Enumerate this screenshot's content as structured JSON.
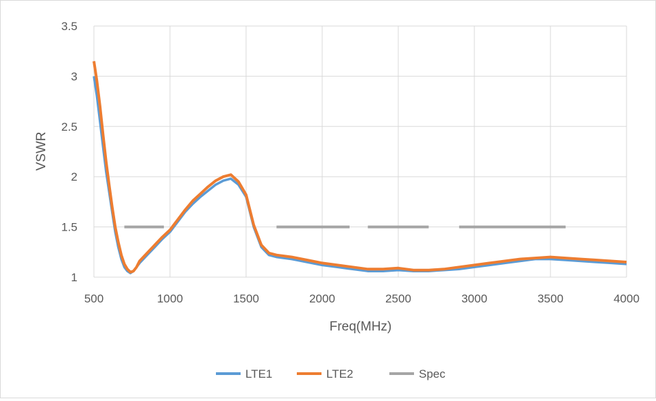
{
  "chart_data": {
    "type": "line",
    "title": "",
    "xlabel": "Freq(MHz)",
    "ylabel": "VSWR",
    "xlim": [
      500,
      4000
    ],
    "ylim": [
      1,
      3.5
    ],
    "x_ticks": [
      500,
      1000,
      1500,
      2000,
      2500,
      3000,
      3500,
      4000
    ],
    "y_ticks": [
      1,
      1.5,
      2,
      2.5,
      3,
      3.5
    ],
    "x_tick_labels": [
      "500",
      "1000",
      "1500",
      "2000",
      "2500",
      "3000",
      "3500",
      "4000"
    ],
    "y_tick_labels": [
      "1",
      "1.5",
      "2",
      "2.5",
      "3",
      "3.5"
    ],
    "grid": true,
    "legend_position": "bottom",
    "series": [
      {
        "name": "LTE1",
        "color": "#5b9bd5",
        "x": [
          500,
          520,
          540,
          560,
          580,
          600,
          620,
          640,
          660,
          680,
          700,
          720,
          740,
          760,
          780,
          800,
          850,
          900,
          950,
          1000,
          1050,
          1100,
          1150,
          1200,
          1250,
          1300,
          1350,
          1400,
          1450,
          1500,
          1550,
          1600,
          1650,
          1700,
          1800,
          1900,
          2000,
          2100,
          2200,
          2300,
          2400,
          2500,
          2600,
          2700,
          2800,
          2900,
          3000,
          3100,
          3200,
          3300,
          3400,
          3500,
          3600,
          3700,
          3800,
          3900,
          4000
        ],
        "y": [
          3.0,
          2.8,
          2.55,
          2.3,
          2.05,
          1.85,
          1.65,
          1.45,
          1.3,
          1.18,
          1.1,
          1.06,
          1.04,
          1.06,
          1.1,
          1.14,
          1.22,
          1.3,
          1.38,
          1.45,
          1.55,
          1.65,
          1.73,
          1.8,
          1.86,
          1.92,
          1.96,
          1.98,
          1.92,
          1.8,
          1.5,
          1.3,
          1.22,
          1.2,
          1.18,
          1.15,
          1.12,
          1.1,
          1.08,
          1.06,
          1.06,
          1.07,
          1.06,
          1.06,
          1.07,
          1.08,
          1.1,
          1.12,
          1.14,
          1.16,
          1.18,
          1.18,
          1.17,
          1.16,
          1.15,
          1.14,
          1.13
        ]
      },
      {
        "name": "LTE2",
        "color": "#ed7d31",
        "x": [
          500,
          520,
          540,
          560,
          580,
          600,
          620,
          640,
          660,
          680,
          700,
          720,
          740,
          760,
          780,
          800,
          850,
          900,
          950,
          1000,
          1050,
          1100,
          1150,
          1200,
          1250,
          1300,
          1350,
          1400,
          1450,
          1500,
          1550,
          1600,
          1650,
          1700,
          1800,
          1900,
          2000,
          2100,
          2200,
          2300,
          2400,
          2500,
          2600,
          2700,
          2800,
          2900,
          3000,
          3100,
          3200,
          3300,
          3400,
          3500,
          3600,
          3700,
          3800,
          3900,
          4000
        ],
        "y": [
          3.15,
          2.95,
          2.7,
          2.42,
          2.15,
          1.92,
          1.7,
          1.5,
          1.35,
          1.22,
          1.13,
          1.08,
          1.05,
          1.06,
          1.1,
          1.16,
          1.24,
          1.32,
          1.4,
          1.47,
          1.57,
          1.67,
          1.76,
          1.83,
          1.9,
          1.96,
          2.0,
          2.02,
          1.95,
          1.82,
          1.52,
          1.32,
          1.24,
          1.22,
          1.2,
          1.17,
          1.14,
          1.12,
          1.1,
          1.08,
          1.08,
          1.09,
          1.07,
          1.07,
          1.08,
          1.1,
          1.12,
          1.14,
          1.16,
          1.18,
          1.19,
          1.2,
          1.19,
          1.18,
          1.17,
          1.16,
          1.15
        ]
      },
      {
        "name": "Spec",
        "color": "#a5a5a5",
        "segments": [
          {
            "x": [
              700,
              960
            ],
            "y": [
              1.5,
              1.5
            ]
          },
          {
            "x": [
              1700,
              2180
            ],
            "y": [
              1.5,
              1.5
            ]
          },
          {
            "x": [
              2300,
              2700
            ],
            "y": [
              1.5,
              1.5
            ]
          },
          {
            "x": [
              2900,
              3600
            ],
            "y": [
              1.5,
              1.5
            ]
          }
        ]
      }
    ]
  }
}
